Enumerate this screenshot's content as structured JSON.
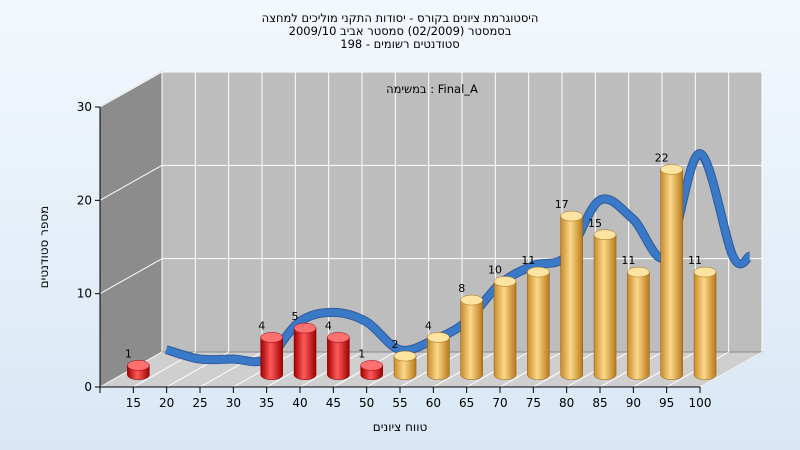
{
  "chart_data": {
    "type": "bar",
    "title_lines": [
      "היסטוגרמת ציונים בקורס - יסודות התקני מוליכים למחצה",
      "בסמסטר  (02/2009)  סמסטר אביב 2009/10",
      "סטודנטים רשומים - 198"
    ],
    "annotation": "במשימה : Final_A",
    "xlabel": "טווח ציונים",
    "ylabel": "מספר סטודנטים",
    "ylim": [
      0,
      30
    ],
    "y_ticks": [
      0,
      10,
      20,
      30
    ],
    "categories": [
      "15",
      "20",
      "25",
      "30",
      "35",
      "40",
      "45",
      "50",
      "55",
      "60",
      "65",
      "70",
      "75",
      "80",
      "85",
      "90",
      "95",
      "100"
    ],
    "values": [
      1,
      0,
      0,
      0,
      4,
      5,
      4,
      1,
      2,
      4,
      8,
      10,
      11,
      17,
      15,
      11,
      22,
      11
    ],
    "fail_threshold": 55,
    "colors": {
      "fail": "#e01010",
      "pass": "#f0a830",
      "curve": "#3a78c8",
      "curve_back": "#7a7a7a",
      "wall_back": "#bdbdbd",
      "wall_left": "#8c8c8c",
      "floor": "#cfcfcf",
      "background": "#e6f0fa"
    }
  }
}
